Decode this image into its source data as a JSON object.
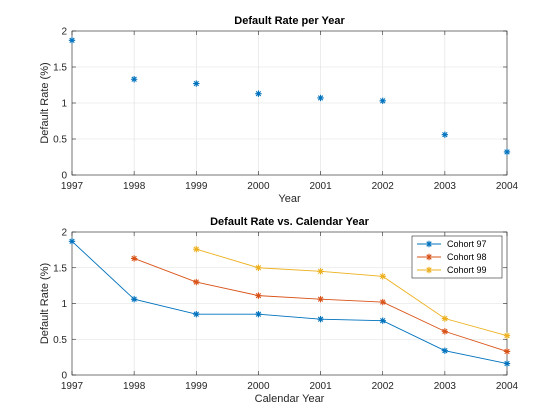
{
  "chart_data": [
    {
      "type": "scatter",
      "title": "Default Rate per Year",
      "xlabel": "Year",
      "ylabel": "Default Rate (%)",
      "xlim": [
        1997,
        2004
      ],
      "ylim": [
        0,
        2
      ],
      "xticks": [
        1997,
        1998,
        1999,
        2000,
        2001,
        2002,
        2003,
        2004
      ],
      "yticks": [
        0,
        0.5,
        1,
        1.5,
        2
      ],
      "grid": true,
      "marker": "*",
      "series": [
        {
          "color": "#0072BD",
          "x": [
            1997,
            1998,
            1999,
            2000,
            2001,
            2002,
            2003,
            2004
          ],
          "y": [
            1.87,
            1.33,
            1.27,
            1.13,
            1.07,
            1.03,
            0.56,
            0.32
          ]
        }
      ]
    },
    {
      "type": "line",
      "title": "Default Rate vs. Calendar Year",
      "xlabel": "Calendar Year",
      "ylabel": "Default Rate (%)",
      "xlim": [
        1997,
        2004
      ],
      "ylim": [
        0,
        2
      ],
      "xticks": [
        1997,
        1998,
        1999,
        2000,
        2001,
        2002,
        2003,
        2004
      ],
      "yticks": [
        0,
        0.5,
        1,
        1.5,
        2
      ],
      "grid": true,
      "legend_position": "top-right",
      "marker": "*",
      "series": [
        {
          "name": "Cohort 97",
          "color": "#0072BD",
          "x": [
            1997,
            1998,
            1999,
            2000,
            2001,
            2002,
            2003,
            2004
          ],
          "y": [
            1.87,
            1.06,
            0.85,
            0.85,
            0.78,
            0.76,
            0.34,
            0.16
          ]
        },
        {
          "name": "Cohort 98",
          "color": "#D95319",
          "x": [
            1998,
            1999,
            2000,
            2001,
            2002,
            2003,
            2004
          ],
          "y": [
            1.63,
            1.3,
            1.11,
            1.06,
            1.02,
            0.61,
            0.33
          ]
        },
        {
          "name": "Cohort 99",
          "color": "#EDB120",
          "x": [
            1999,
            2000,
            2001,
            2002,
            2003,
            2004
          ],
          "y": [
            1.76,
            1.5,
            1.45,
            1.38,
            0.79,
            0.55
          ]
        }
      ]
    }
  ]
}
